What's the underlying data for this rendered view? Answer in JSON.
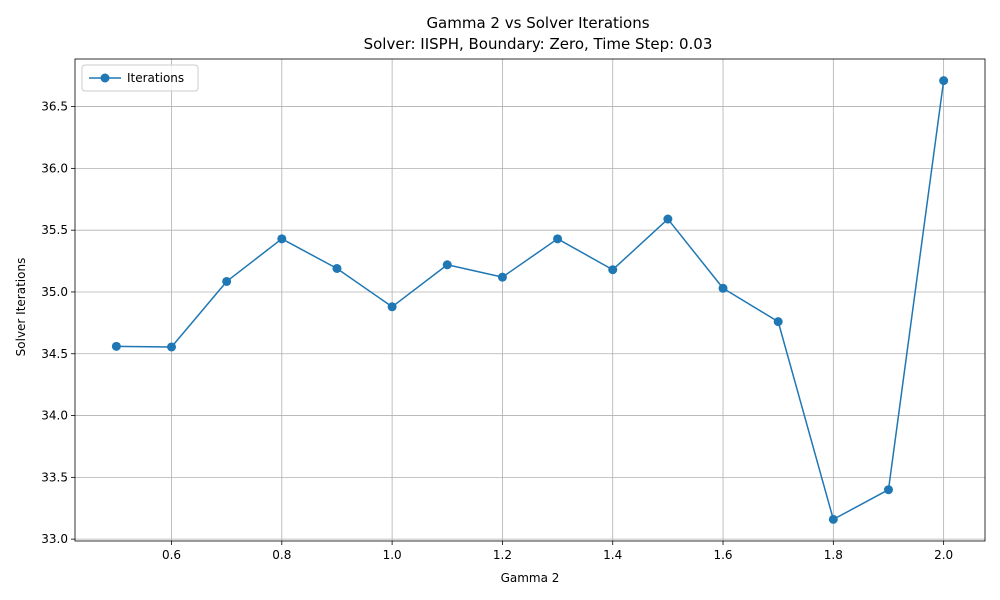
{
  "chart_data": {
    "type": "line",
    "title": "Gamma 2 vs Solver Iterations",
    "subtitle": "Solver: IISPH, Boundary: Zero, Time Step: 0.03",
    "xlabel": "Gamma 2",
    "ylabel": "Solver Iterations",
    "xlim": [
      0.425,
      2.075
    ],
    "ylim": [
      32.985,
      36.885
    ],
    "xticks": [
      0.6,
      0.8,
      1.0,
      1.2,
      1.4,
      1.6,
      1.8,
      2.0
    ],
    "xtick_labels": [
      "0.6",
      "0.8",
      "1.0",
      "1.2",
      "1.4",
      "1.6",
      "1.8",
      "2.0"
    ],
    "yticks": [
      33.0,
      33.5,
      34.0,
      34.5,
      35.0,
      35.5,
      36.0,
      36.5
    ],
    "ytick_labels": [
      "33.0",
      "33.5",
      "34.0",
      "34.5",
      "35.0",
      "35.5",
      "36.0",
      "36.5"
    ],
    "grid": true,
    "legend_position": "top-left",
    "series": [
      {
        "name": "Iterations",
        "color": "#1f77b4",
        "marker": "circle",
        "x": [
          0.5,
          0.6,
          0.7,
          0.8,
          0.9,
          1.0,
          1.1,
          1.2,
          1.3,
          1.4,
          1.5,
          1.6,
          1.7,
          1.8,
          1.9,
          2.0
        ],
        "y": [
          34.56,
          34.555,
          35.085,
          35.43,
          35.19,
          34.88,
          35.22,
          35.12,
          35.43,
          35.18,
          35.59,
          35.03,
          34.76,
          33.16,
          33.4,
          36.71
        ]
      }
    ]
  }
}
